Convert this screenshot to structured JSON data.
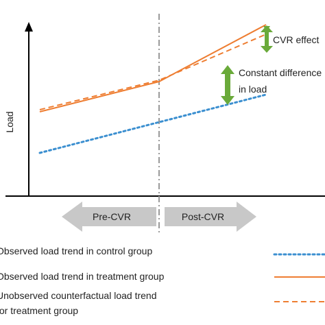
{
  "axis": {
    "ylabel": "Load"
  },
  "phases": {
    "pre": "Pre-CVR",
    "post": "Post-CVR"
  },
  "annotations": {
    "cvr_effect": "CVR effect",
    "constant_difference_line1": "Constant difference",
    "constant_difference_line2": "in load"
  },
  "legend": {
    "control": "Observed load trend in control group",
    "treatment": "Observed load trend in treatment group",
    "counterfactual_line1": "Unobserved counterfactual load trend",
    "counterfactual_line2": "for treatment group"
  },
  "colors": {
    "control": "#3b8fd0",
    "treatment": "#ee7d31",
    "effect_arrow": "#6aaa3a",
    "phase_arrow": "#c8c8c8",
    "axis": "#000000",
    "divider": "#9a9a9a"
  },
  "icons": {
    "axis_arrow": "triangle-up-arrow",
    "difference_arrow": "double-headed-arrow",
    "phase_arrow": "block-arrow"
  }
}
